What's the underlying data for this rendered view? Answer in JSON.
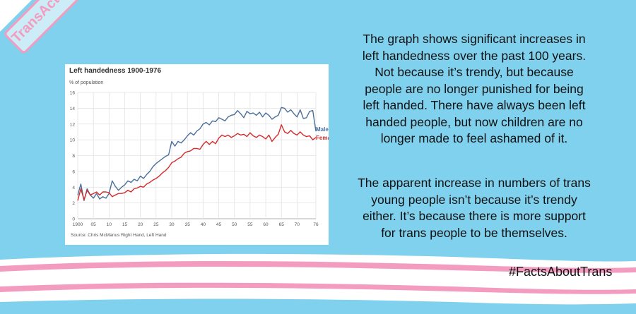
{
  "brand": {
    "stamp_text": "TransActual"
  },
  "chart_data": {
    "type": "line",
    "title": "Left handedness 1900-1976",
    "ylabel": "% of population",
    "xlabel": "",
    "source": "Source: Chris McManus Right Hand, Left Hand",
    "ylim": [
      0,
      16
    ],
    "xlim": [
      1900,
      1976
    ],
    "yticks": [
      0,
      2,
      4,
      6,
      8,
      10,
      12,
      14,
      16
    ],
    "xticks": [
      {
        "value": 1900,
        "label": "1900"
      },
      {
        "value": 1905,
        "label": "05"
      },
      {
        "value": 1910,
        "label": "10"
      },
      {
        "value": 1915,
        "label": "15"
      },
      {
        "value": 1920,
        "label": "20"
      },
      {
        "value": 1925,
        "label": "25"
      },
      {
        "value": 1930,
        "label": "30"
      },
      {
        "value": 1935,
        "label": "35"
      },
      {
        "value": 1940,
        "label": "40"
      },
      {
        "value": 1945,
        "label": "45"
      },
      {
        "value": 1950,
        "label": "50"
      },
      {
        "value": 1955,
        "label": "55"
      },
      {
        "value": 1960,
        "label": "60"
      },
      {
        "value": 1965,
        "label": "65"
      },
      {
        "value": 1970,
        "label": "70"
      },
      {
        "value": 1976,
        "label": "76"
      }
    ],
    "grid": true,
    "series": [
      {
        "name": "Male",
        "color": "#4a6f9a",
        "x": [
          1900,
          1901,
          1902,
          1903,
          1904,
          1905,
          1906,
          1907,
          1908,
          1909,
          1910,
          1911,
          1912,
          1913,
          1914,
          1915,
          1916,
          1917,
          1918,
          1919,
          1920,
          1921,
          1922,
          1923,
          1924,
          1925,
          1926,
          1927,
          1928,
          1929,
          1930,
          1931,
          1932,
          1933,
          1934,
          1935,
          1936,
          1937,
          1938,
          1939,
          1940,
          1941,
          1942,
          1943,
          1944,
          1945,
          1946,
          1947,
          1948,
          1949,
          1950,
          1951,
          1952,
          1953,
          1954,
          1955,
          1956,
          1957,
          1958,
          1959,
          1960,
          1961,
          1962,
          1963,
          1964,
          1965,
          1966,
          1967,
          1968,
          1969,
          1970,
          1971,
          1972,
          1973,
          1974,
          1975,
          1976
        ],
        "y": [
          3.0,
          4.4,
          2.3,
          3.8,
          3.0,
          2.6,
          3.2,
          2.5,
          2.8,
          2.6,
          3.2,
          4.8,
          4.1,
          3.6,
          4.0,
          4.3,
          4.8,
          4.6,
          5.0,
          4.8,
          5.4,
          5.1,
          5.6,
          6.0,
          6.6,
          7.0,
          7.3,
          7.6,
          7.9,
          8.1,
          9.8,
          9.2,
          9.8,
          9.6,
          10.0,
          10.5,
          10.9,
          10.6,
          11.1,
          11.4,
          12.0,
          12.2,
          11.9,
          12.4,
          12.3,
          12.8,
          12.6,
          12.4,
          12.9,
          13.1,
          13.2,
          13.7,
          13.3,
          12.8,
          13.6,
          13.3,
          13.4,
          13.1,
          13.5,
          12.9,
          13.4,
          13.1,
          12.6,
          12.9,
          13.1,
          14.1,
          14.0,
          13.5,
          13.8,
          13.3,
          12.9,
          13.8,
          12.7,
          12.8,
          13.6,
          13.7,
          11.1
        ]
      },
      {
        "name": "Female",
        "color": "#d42a2a",
        "x": [
          1900,
          1901,
          1902,
          1903,
          1904,
          1905,
          1906,
          1907,
          1908,
          1909,
          1910,
          1911,
          1912,
          1913,
          1914,
          1915,
          1916,
          1917,
          1918,
          1919,
          1920,
          1921,
          1922,
          1923,
          1924,
          1925,
          1926,
          1927,
          1928,
          1929,
          1930,
          1931,
          1932,
          1933,
          1934,
          1935,
          1936,
          1937,
          1938,
          1939,
          1940,
          1941,
          1942,
          1943,
          1944,
          1945,
          1946,
          1947,
          1948,
          1949,
          1950,
          1951,
          1952,
          1953,
          1954,
          1955,
          1956,
          1957,
          1958,
          1959,
          1960,
          1961,
          1962,
          1963,
          1964,
          1965,
          1966,
          1967,
          1968,
          1969,
          1970,
          1971,
          1972,
          1973,
          1974,
          1975,
          1976
        ],
        "y": [
          2.3,
          3.8,
          2.4,
          3.6,
          3.0,
          3.2,
          3.4,
          3.0,
          3.4,
          3.4,
          3.3,
          2.8,
          3.0,
          3.2,
          3.2,
          3.3,
          3.6,
          3.4,
          3.8,
          3.9,
          4.1,
          4.0,
          4.4,
          4.6,
          4.9,
          5.1,
          5.4,
          5.8,
          6.1,
          6.5,
          7.1,
          7.3,
          7.6,
          7.8,
          8.3,
          8.5,
          8.6,
          8.9,
          8.9,
          8.8,
          9.4,
          9.8,
          9.4,
          9.8,
          9.5,
          10.2,
          10.6,
          10.4,
          10.6,
          10.3,
          10.5,
          10.8,
          10.6,
          10.7,
          10.4,
          10.9,
          10.5,
          10.3,
          10.6,
          10.4,
          10.1,
          10.6,
          9.8,
          10.3,
          10.7,
          11.9,
          11.0,
          10.8,
          11.2,
          10.8,
          10.6,
          11.0,
          10.6,
          10.4,
          10.5,
          10.0,
          10.3
        ]
      }
    ]
  },
  "text": {
    "para1_lines": [
      "The graph shows significant increases in",
      "left handedness over the past 100 years.",
      "Not because it’s trendy, but because",
      "people are no longer punished for being",
      "left handed. There have always been left",
      "handed people, but now children are no",
      "longer made to feel ashamed of it."
    ],
    "para2_lines": [
      "The apparent increase in numbers of trans",
      "young people isn’t because it’s trendy",
      "either. It’s because there is more support",
      "for trans people to be themselves."
    ]
  },
  "hashtag": "#FactsAboutTrans",
  "colors": {
    "background": "#7fd1ee",
    "pink": "#f39cc0",
    "white": "#ffffff"
  }
}
